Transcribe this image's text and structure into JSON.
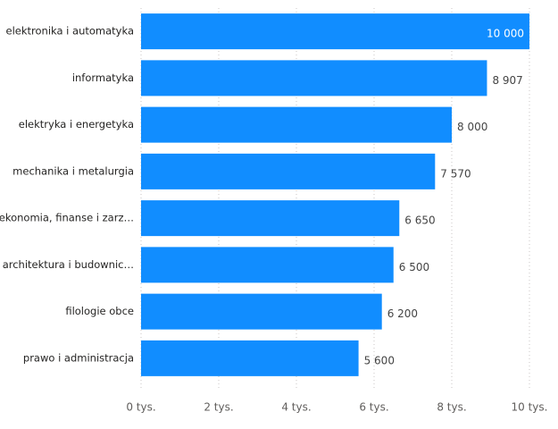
{
  "chart_data": {
    "type": "bar",
    "orientation": "horizontal",
    "categories": [
      "elektronika i automatyka",
      "informatyka",
      "elektryka i energetyka",
      "mechanika i metalurgia",
      "ekonomia, finanse i zarz…",
      "architektura i budownic…",
      "filologie obce",
      "prawo i administracja"
    ],
    "values": [
      10000,
      8907,
      8000,
      7570,
      6650,
      6500,
      6200,
      5600
    ],
    "value_labels": [
      "10 000",
      "8 907",
      "8 000",
      "7 570",
      "6 650",
      "6 500",
      "6 200",
      "5 600"
    ],
    "color": "#118DFF",
    "xlim": [
      0,
      10000
    ],
    "xticks": [
      {
        "value": 0,
        "label": "0 tys."
      },
      {
        "value": 2000,
        "label": "2 tys."
      },
      {
        "value": 4000,
        "label": "4 tys."
      },
      {
        "value": 6000,
        "label": "6 tys."
      },
      {
        "value": 8000,
        "label": "8 tys."
      },
      {
        "value": 10000,
        "label": "10 tys."
      }
    ],
    "grid": true
  }
}
